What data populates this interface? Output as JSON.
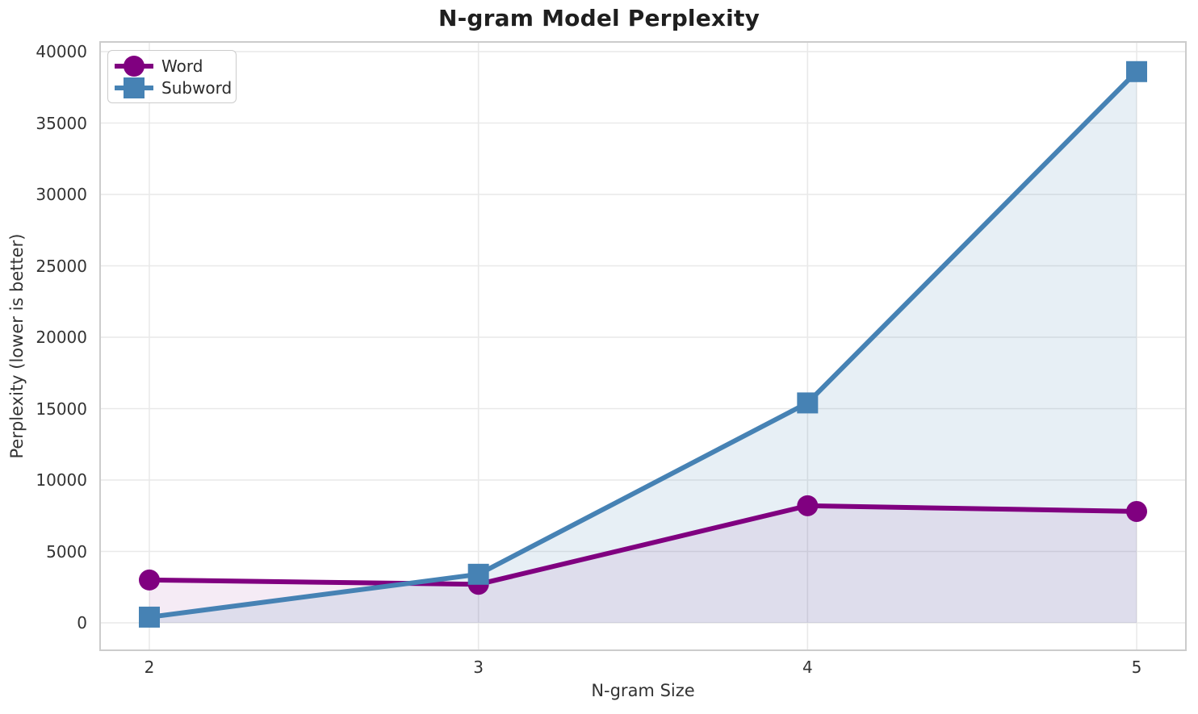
{
  "chart_data": {
    "type": "line",
    "title": "N-gram Model Perplexity",
    "xlabel": "N-gram Size",
    "ylabel": "Perplexity (lower is better)",
    "x": [
      2,
      3,
      4,
      5
    ],
    "xticks": [
      "2",
      "3",
      "4",
      "5"
    ],
    "yticks": [
      "0",
      "5000",
      "10000",
      "15000",
      "20000",
      "25000",
      "30000",
      "35000",
      "40000"
    ],
    "ytick_values": [
      0,
      5000,
      10000,
      15000,
      20000,
      25000,
      30000,
      35000,
      40000
    ],
    "ylim": [
      0,
      40000
    ],
    "grid": true,
    "area_fill_to_zero": true,
    "legend_position": "upper-left",
    "series": [
      {
        "name": "Word",
        "marker": "circle",
        "color": "#800080",
        "fill_opacity": 0.08,
        "values": [
          3000,
          2700,
          8200,
          7800
        ]
      },
      {
        "name": "Subword",
        "marker": "square",
        "color": "#4682b4",
        "fill_opacity": 0.13,
        "values": [
          400,
          3400,
          15400,
          38600
        ]
      }
    ],
    "colors": {
      "grid": "#e9e9e9",
      "spine": "#cccccc",
      "background": "#ffffff",
      "text": "#333333"
    }
  }
}
